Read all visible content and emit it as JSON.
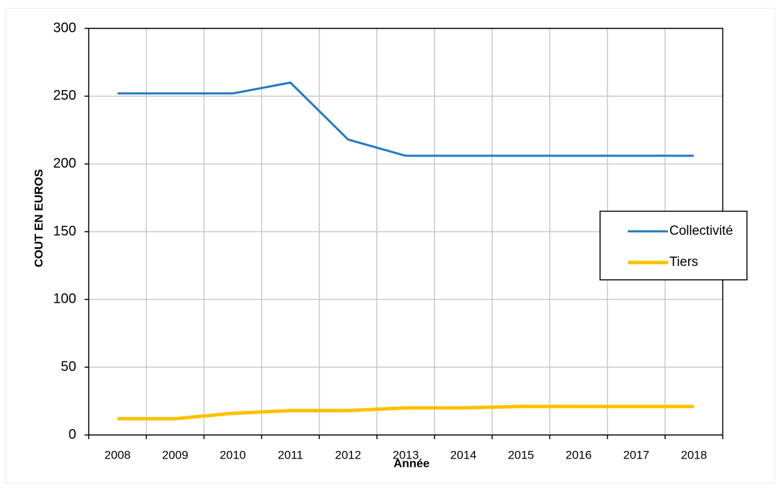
{
  "chart_data": {
    "type": "line",
    "x_label": "Année",
    "y_label": "COUT EN EUROS",
    "categories": [
      "2008",
      "2009",
      "2010",
      "2011",
      "2012",
      "2013",
      "2014",
      "2015",
      "2016",
      "2017",
      "2018"
    ],
    "series": [
      {
        "name": "Collectivité",
        "color": "#1f77c4",
        "values": [
          252,
          252,
          252,
          260,
          218,
          206,
          206,
          206,
          206,
          206,
          206
        ]
      },
      {
        "name": "Tiers",
        "color": "#ffc000",
        "values": [
          12,
          12,
          16,
          18,
          18,
          20,
          20,
          21,
          21,
          21,
          21
        ]
      }
    ],
    "ylim": [
      0,
      300
    ],
    "yticks": [
      0,
      50,
      100,
      150,
      200,
      250,
      300
    ],
    "grid": true,
    "legend": "right"
  }
}
